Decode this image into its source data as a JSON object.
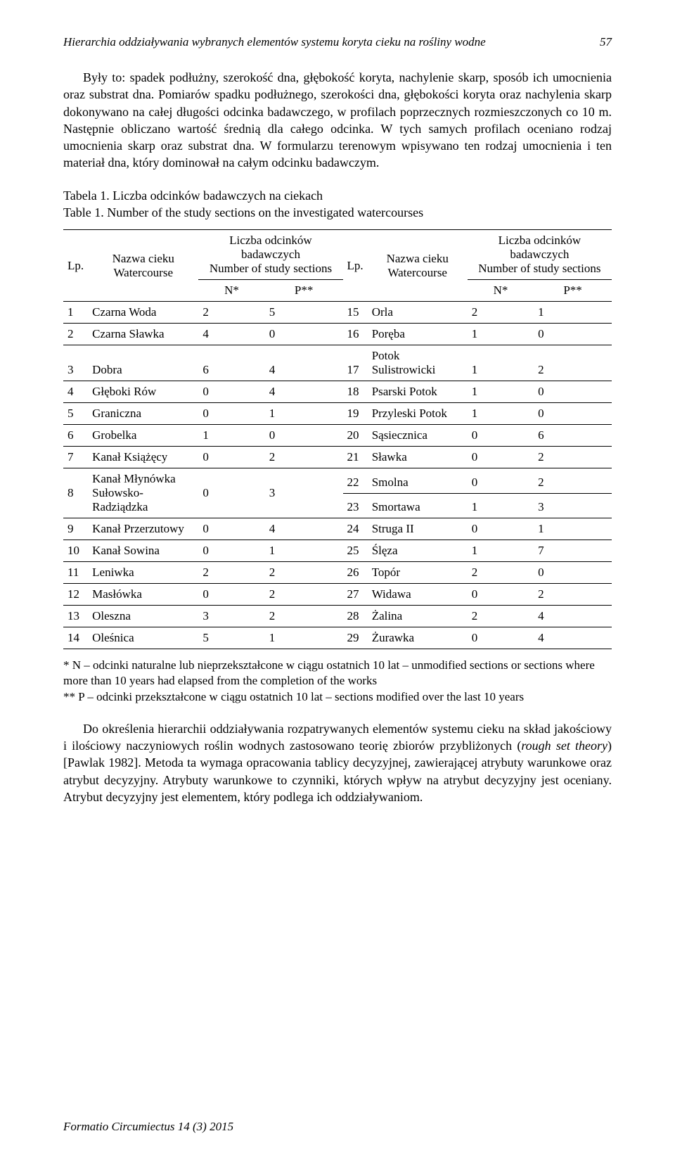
{
  "header": {
    "running_title": "Hierarchia oddziaływania wybranych elementów systemu koryta cieku na rośliny wodne",
    "page_number": "57"
  },
  "paragraph1": "Były to: spadek podłużny, szerokość dna, głębokość koryta, nachylenie skarp, sposób ich umocnienia oraz substrat dna. Pomiarów spadku podłużnego, szerokości dna, głębokości koryta oraz nachylenia skarp dokonywano na całej długości odcinka badawczego, w profilach poprzecznych rozmieszczonych co 10 m. Następnie obliczano wartość średnią dla całego odcinka. W tych samych profilach oceniano rodzaj umocnienia skarp oraz substrat dna. W formularzu terenowym wpisywano ten rodzaj umocnienia i ten materiał dna, który dominował na całym odcinku badawczym.",
  "table_caption": {
    "pl": "Tabela 1. Liczba odcinków badawczych na ciekach",
    "en": "Table 1.  Number of the study sections on the investigated watercourses"
  },
  "table": {
    "head": {
      "lp": "Lp.",
      "name_pl": "Nazwa cieku",
      "name_en": "Watercourse",
      "count_pl": "Liczba odcinków badawczych",
      "count_en1": "Number of study sections",
      "count_en2": "Number of study sections",
      "n": "N*",
      "p": "P**"
    },
    "rows": [
      {
        "lp": "1",
        "name": "Czarna Woda",
        "n": "2",
        "p": "5",
        "lp2": "15",
        "name2": "Orla",
        "n2": "2",
        "p2": "1"
      },
      {
        "lp": "2",
        "name": "Czarna Sławka",
        "n": "4",
        "p": "0",
        "lp2": "16",
        "name2": "Poręba",
        "n2": "1",
        "p2": "0"
      },
      {
        "lp": "3",
        "name": "Dobra",
        "n": "6",
        "p": "4",
        "lp2": "17",
        "name2": "Potok Sulistrowicki",
        "n2": "1",
        "p2": "2"
      },
      {
        "lp": "4",
        "name": "Głęboki Rów",
        "n": "0",
        "p": "4",
        "lp2": "18",
        "name2": "Psarski Potok",
        "n2": "1",
        "p2": "0"
      },
      {
        "lp": "5",
        "name": "Graniczna",
        "n": "0",
        "p": "1",
        "lp2": "19",
        "name2": "Przyleski Potok",
        "n2": "1",
        "p2": "0"
      },
      {
        "lp": "6",
        "name": "Grobelka",
        "n": "1",
        "p": "0",
        "lp2": "20",
        "name2": "Sąsiecznica",
        "n2": "0",
        "p2": "6"
      },
      {
        "lp": "7",
        "name": "Kanał Książęcy",
        "n": "0",
        "p": "2",
        "lp2": "21",
        "name2": "Sławka",
        "n2": "0",
        "p2": "2"
      },
      {
        "lp": "",
        "name": "",
        "n": "",
        "p": "",
        "lp2": "22",
        "name2": "Smolna",
        "n2": "0",
        "p2": "2"
      },
      {
        "lp": "",
        "name": "",
        "n": "",
        "p": "",
        "lp2": "23",
        "name2": "Smortawa",
        "n2": "1",
        "p2": "3"
      },
      {
        "lp": "9",
        "name": "Kanał Przerzutowy",
        "n": "0",
        "p": "4",
        "lp2": "24",
        "name2": "Struga II",
        "n2": "0",
        "p2": "1"
      },
      {
        "lp": "10",
        "name": "Kanał Sowina",
        "n": "0",
        "p": "1",
        "lp2": "25",
        "name2": "Ślęza",
        "n2": "1",
        "p2": "7"
      },
      {
        "lp": "11",
        "name": "Leniwka",
        "n": "2",
        "p": "2",
        "lp2": "26",
        "name2": "Topór",
        "n2": "2",
        "p2": "0"
      },
      {
        "lp": "12",
        "name": "Masłówka",
        "n": "0",
        "p": "2",
        "lp2": "27",
        "name2": "Widawa",
        "n2": "0",
        "p2": "2"
      },
      {
        "lp": "13",
        "name": "Oleszna",
        "n": "3",
        "p": "2",
        "lp2": "28",
        "name2": "Żalina",
        "n2": "2",
        "p2": "4"
      },
      {
        "lp": "14",
        "name": "Oleśnica",
        "n": "5",
        "p": "1",
        "lp2": "29",
        "name2": "Żurawka",
        "n2": "0",
        "p2": "4"
      }
    ],
    "row8": {
      "lp": "8",
      "name_line1": "Kanał Młynówka",
      "name_line2": "Sułowsko-Radziądzka",
      "n": "0",
      "p": "3"
    }
  },
  "footnote": {
    "line1": "* N – odcinki naturalne lub nieprzekształcone w ciągu ostatnich 10 lat – unmodified sections or sections where more than 10 years had elapsed from the completion of the works",
    "line2": "** P – odcinki przekształcone w ciągu ostatnich 10 lat – sections modified over the last 10 years"
  },
  "paragraph2": "Do określenia hierarchii oddziaływania rozpatrywanych elementów systemu cieku na skład jakościowy i ilościowy naczyniowych roślin wodnych zastosowano teorię zbiorów przybliżonych (rough set theory) [Pawlak 1982]. Metoda ta wymaga opracowania tablicy decyzyjnej, zawierającej atrybuty warunkowe oraz atrybut decyzyjny. Atrybuty warunkowe to czynniki, których wpływ na atrybut decyzyjny jest oceniany. Atrybut decyzyjny jest elementem, który podlega ich oddziaływaniom.",
  "footer": "Formatio Circumiectus 14 (3) 2015"
}
